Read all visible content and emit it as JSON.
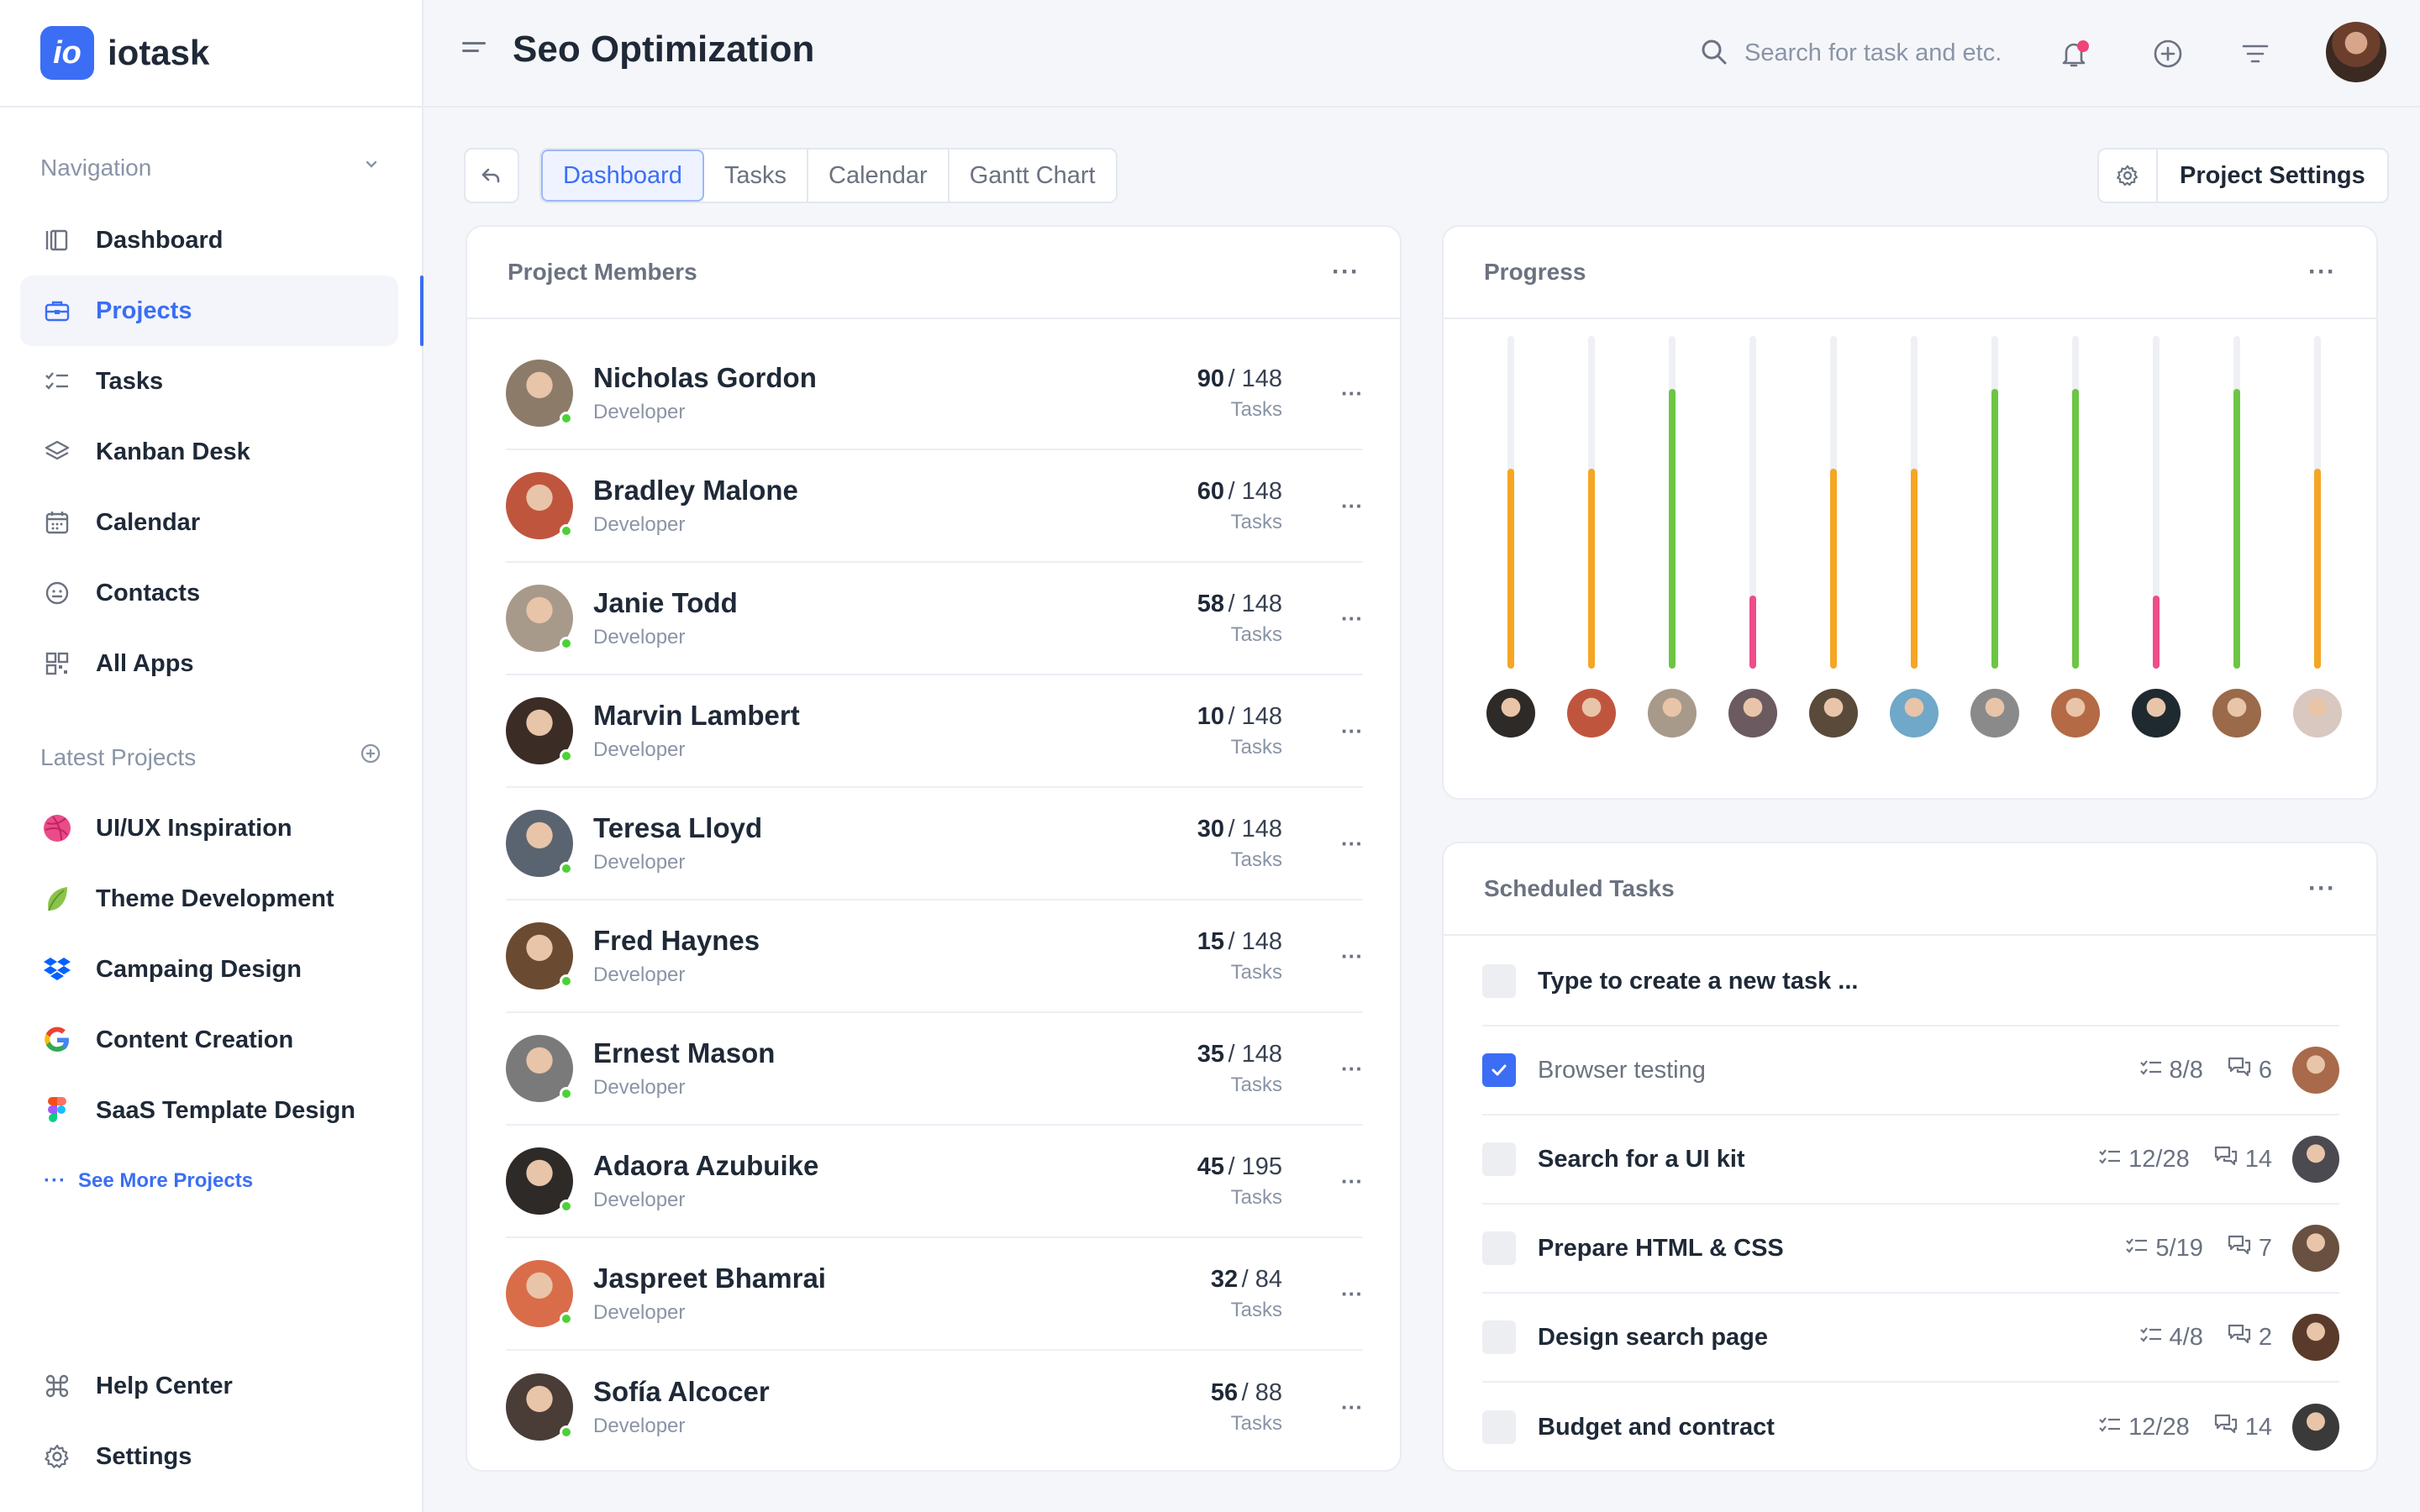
{
  "brand": {
    "logo_text": "io",
    "name": "iotask"
  },
  "sidebar": {
    "navigation_title": "Navigation",
    "nav_items": [
      {
        "label": "Dashboard",
        "icon": "dashboard-icon"
      },
      {
        "label": "Projects",
        "icon": "briefcase-icon",
        "active": true
      },
      {
        "label": "Tasks",
        "icon": "tasks-icon"
      },
      {
        "label": "Kanban Desk",
        "icon": "layers-icon"
      },
      {
        "label": "Calendar",
        "icon": "calendar-icon"
      },
      {
        "label": "Contacts",
        "icon": "contacts-icon"
      },
      {
        "label": "All Apps",
        "icon": "apps-icon"
      }
    ],
    "latest_title": "Latest Projects",
    "projects": [
      {
        "label": "UI/UX Inspiration",
        "icon": "dribbble-icon",
        "color": "#ea4c89"
      },
      {
        "label": "Theme Development",
        "icon": "leaf-icon",
        "color": "#8bc34a"
      },
      {
        "label": "Campaing Design",
        "icon": "dropbox-icon",
        "color": "#0061fe"
      },
      {
        "label": "Content Creation",
        "icon": "google-icon",
        "color": "#4285f4"
      },
      {
        "label": "SaaS Template Design",
        "icon": "figma-icon",
        "color": "#f24e1e"
      }
    ],
    "see_more": "See More Projects",
    "footer": [
      {
        "label": "Help Center",
        "icon": "command-icon"
      },
      {
        "label": "Settings",
        "icon": "gear-icon"
      }
    ]
  },
  "header": {
    "title": "Seo Optimization",
    "search_placeholder": "Search for task and etc."
  },
  "tabs": [
    "Dashboard",
    "Tasks",
    "Calendar",
    "Gantt Chart"
  ],
  "active_tab": "Dashboard",
  "project_settings_label": "Project Settings",
  "members_card": {
    "title": "Project Members",
    "members": [
      {
        "name": "Nicholas Gordon",
        "role": "Developer",
        "done": "90",
        "total": "/ 148",
        "unit": "Tasks",
        "avatar_color": "#8d7b6a"
      },
      {
        "name": "Bradley Malone",
        "role": "Developer",
        "done": "60",
        "total": "/ 148",
        "unit": "Tasks",
        "avatar_color": "#c0553e"
      },
      {
        "name": "Janie Todd",
        "role": "Developer",
        "done": "58",
        "total": "/ 148",
        "unit": "Tasks",
        "avatar_color": "#a89a8a"
      },
      {
        "name": "Marvin Lambert",
        "role": "Developer",
        "done": "10",
        "total": "/ 148",
        "unit": "Tasks",
        "avatar_color": "#3b2c25"
      },
      {
        "name": "Teresa Lloyd",
        "role": "Developer",
        "done": "30",
        "total": "/ 148",
        "unit": "Tasks",
        "avatar_color": "#5a6470"
      },
      {
        "name": "Fred Haynes",
        "role": "Developer",
        "done": "15",
        "total": "/ 148",
        "unit": "Tasks",
        "avatar_color": "#6b4a32"
      },
      {
        "name": "Ernest Mason",
        "role": "Developer",
        "done": "35",
        "total": "/ 148",
        "unit": "Tasks",
        "avatar_color": "#7a7a7a"
      },
      {
        "name": "Adaora Azubuike",
        "role": "Developer",
        "done": "45",
        "total": "/ 195",
        "unit": "Tasks",
        "avatar_color": "#2d2a28"
      },
      {
        "name": "Jaspreet Bhamrai",
        "role": "Developer",
        "done": "32",
        "total": "/ 84",
        "unit": "Tasks",
        "avatar_color": "#d96d4a"
      },
      {
        "name": "Sofía Alcocer",
        "role": "Developer",
        "done": "56",
        "total": "/ 88",
        "unit": "Tasks",
        "avatar_color": "#4a3c36"
      }
    ]
  },
  "progress_card": {
    "title": "Progress",
    "bars": [
      {
        "value": 0.6,
        "color": "#f5a623",
        "avatar_color": "#2d2a28"
      },
      {
        "value": 0.6,
        "color": "#f5a623",
        "avatar_color": "#c0553e"
      },
      {
        "value": 0.84,
        "color": "#6cc644",
        "avatar_color": "#a89a8a"
      },
      {
        "value": 0.22,
        "color": "#ef4c8a",
        "avatar_color": "#6b5a60"
      },
      {
        "value": 0.6,
        "color": "#f5a623",
        "avatar_color": "#5a4a3a"
      },
      {
        "value": 0.6,
        "color": "#f5a623",
        "avatar_color": "#6fa8c8"
      },
      {
        "value": 0.84,
        "color": "#6cc644",
        "avatar_color": "#8a8a8a"
      },
      {
        "value": 0.84,
        "color": "#6cc644",
        "avatar_color": "#b46a44"
      },
      {
        "value": 0.22,
        "color": "#ef4c8a",
        "avatar_color": "#1f2a30"
      },
      {
        "value": 0.84,
        "color": "#6cc644",
        "avatar_color": "#9a6a4a"
      },
      {
        "value": 0.6,
        "color": "#f5a623",
        "avatar_color": "#d8c8c0"
      }
    ]
  },
  "tasks_card": {
    "title": "Scheduled Tasks",
    "new_task_placeholder": "Type to create a new task ...",
    "tasks": [
      {
        "name": "Browser testing",
        "checked": true,
        "subtasks": "8/8",
        "comments": "6",
        "avatar_color": "#a86a4a"
      },
      {
        "name": "Search for a UI kit",
        "checked": false,
        "subtasks": "12/28",
        "comments": "14",
        "avatar_color": "#4a4a50"
      },
      {
        "name": "Prepare HTML & CSS",
        "checked": false,
        "subtasks": "5/19",
        "comments": "7",
        "avatar_color": "#6a5040"
      },
      {
        "name": "Design search page",
        "checked": false,
        "subtasks": "4/8",
        "comments": "2",
        "avatar_color": "#5a3a2a"
      },
      {
        "name": "Budget and contract",
        "checked": false,
        "subtasks": "12/28",
        "comments": "14",
        "avatar_color": "#3a3a3a"
      }
    ]
  }
}
